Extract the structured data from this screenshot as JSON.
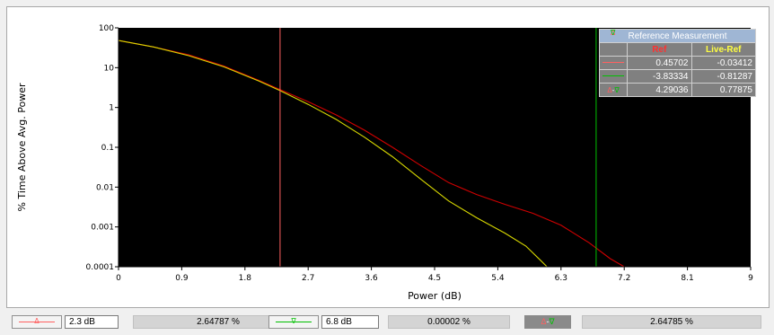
{
  "chart_data": {
    "type": "line",
    "title": "",
    "xlabel": "Power (dB)",
    "ylabel": "% Time Above Avg. Power",
    "xlim": [
      0,
      9
    ],
    "ylim": [
      0.0001,
      100
    ],
    "yscale": "log",
    "grid": false,
    "x_ticks": [
      0,
      0.9,
      1.8,
      2.7,
      3.6,
      4.5,
      5.4,
      6.3,
      7.2,
      8.1,
      9
    ],
    "x_tick_labels": [
      "0",
      "0.9",
      "1.8",
      "2.7",
      "3.6",
      "4.5",
      "5.4",
      "6.3",
      "7.2",
      "8.1",
      "9"
    ],
    "y_ticks": [
      0.0001,
      0.001,
      0.01,
      0.1,
      1,
      10,
      100
    ],
    "y_tick_labels": [
      "0.0001",
      "0.001",
      "0.01",
      "0.1",
      "1",
      "10",
      "100"
    ],
    "series": [
      {
        "color": "#d00000",
        "x": [
          0,
          0.5,
          1.0,
          1.5,
          2.0,
          2.3,
          2.7,
          3.1,
          3.5,
          3.9,
          4.3,
          4.7,
          5.1,
          5.5,
          5.9,
          6.3,
          6.7,
          7.0,
          7.2
        ],
        "y": [
          48,
          33,
          21,
          11,
          4.8,
          2.8,
          1.4,
          0.65,
          0.27,
          0.1,
          0.035,
          0.013,
          0.0065,
          0.0037,
          0.0022,
          0.0011,
          0.0004,
          0.00016,
          0.0001
        ]
      },
      {
        "color": "#d8d800",
        "x": [
          0,
          0.5,
          1.0,
          1.5,
          2.0,
          2.3,
          2.7,
          3.1,
          3.5,
          3.9,
          4.3,
          4.7,
          5.1,
          5.5,
          5.8,
          6.0,
          6.1
        ],
        "y": [
          48,
          33,
          20,
          10.5,
          4.6,
          2.65,
          1.2,
          0.5,
          0.18,
          0.058,
          0.016,
          0.0045,
          0.0017,
          0.0007,
          0.00033,
          0.00015,
          0.0001
        ]
      }
    ],
    "markers": [
      {
        "x": 2.3,
        "color": "#ff6060"
      },
      {
        "x": 6.8,
        "color": "#00c000"
      }
    ]
  },
  "reference_table": {
    "title": "Reference Measurement",
    "col_ref": "Ref",
    "col_live": "Live-Ref",
    "rows": [
      {
        "marker": "red",
        "ref": "0.45702",
        "live": "-0.03412"
      },
      {
        "marker": "green",
        "ref": "-3.83334",
        "live": "-0.81287"
      },
      {
        "marker": "delta",
        "ref": "4.29036",
        "live": "0.77875"
      }
    ]
  },
  "bottom": {
    "marker1_value": "2.3 dB",
    "marker1_readout": "2.64787 %",
    "marker2_value": "6.8 dB",
    "marker2_readout": "0.00002 %",
    "delta_readout": "2.64785 %",
    "glyph_delta": "Δ",
    "glyph_nabla": "∇",
    "glyph_minus": "-"
  },
  "colors": {
    "plot_bg": "#000000",
    "marker1": "#ff6060",
    "marker2": "#00c000",
    "ref_trace": "#d00000",
    "live_trace": "#d8d800"
  }
}
